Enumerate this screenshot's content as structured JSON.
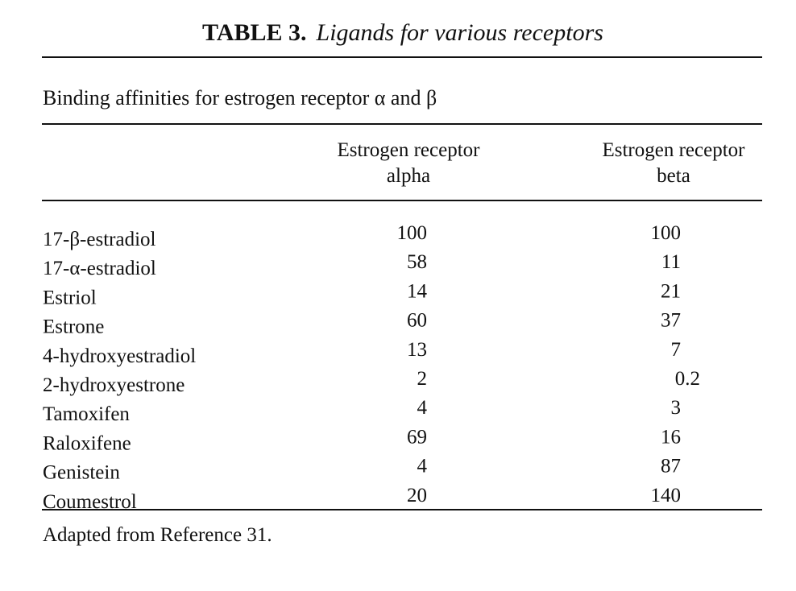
{
  "title": {
    "label": "TABLE 3.",
    "text": "Ligands for various receptors"
  },
  "subtitle": "Binding affinities for estrogen receptor α and β",
  "table": {
    "columns": [
      {
        "lines": [
          "Estrogen receptor",
          "alpha"
        ]
      },
      {
        "lines": [
          "Estrogen receptor",
          "beta"
        ]
      }
    ],
    "rows": [
      [
        "17-β-estradiol",
        100,
        100
      ],
      [
        "17-α-estradiol",
        58,
        11
      ],
      [
        "Estriol",
        14,
        21
      ],
      [
        "Estrone",
        60,
        37
      ],
      [
        "4-hydroxyestradiol",
        13,
        7
      ],
      [
        "2-hydroxyestrone",
        2,
        0.2
      ],
      [
        "Tamoxifen",
        4,
        3
      ],
      [
        "Raloxifene",
        69,
        16
      ],
      [
        "Genistein",
        4,
        87
      ],
      [
        "Coumestrol",
        20,
        140
      ]
    ]
  },
  "footnote": "Adapted from Reference 31."
}
